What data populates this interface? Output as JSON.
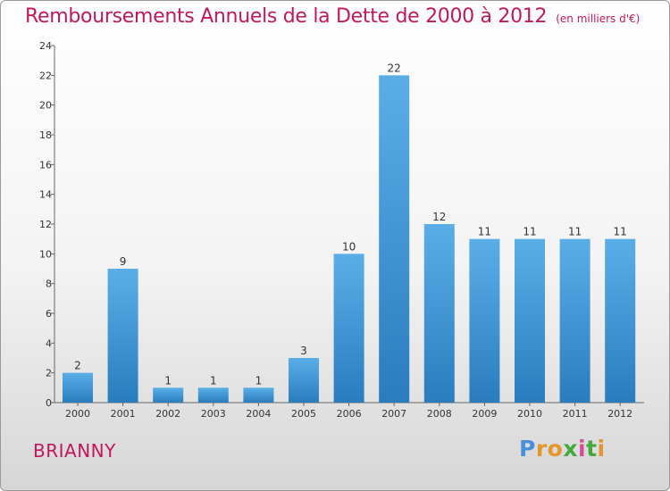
{
  "page": {
    "title": "Remboursements Annuels de la Dette de 2000 à 2012",
    "unit_note": "(en milliers d'€)",
    "commune": "BRIANNY",
    "logo_letters": [
      "P",
      "r",
      "o",
      "x",
      "i",
      "t",
      "i"
    ]
  },
  "chart_data": {
    "type": "bar",
    "title": "Remboursements Annuels de la Dette de 2000 à 2012",
    "subtitle": "(en milliers d'€)",
    "xlabel": "",
    "ylabel": "",
    "categories": [
      "2000",
      "2001",
      "2002",
      "2003",
      "2004",
      "2005",
      "2006",
      "2007",
      "2008",
      "2009",
      "2010",
      "2011",
      "2012"
    ],
    "values": [
      2,
      9,
      1,
      1,
      1,
      3,
      10,
      22,
      12,
      11,
      11,
      11,
      11
    ],
    "ylim": [
      0,
      24
    ],
    "yticks": [
      0,
      2,
      4,
      6,
      8,
      10,
      12,
      14,
      16,
      18,
      20,
      22,
      24
    ],
    "grid": false,
    "legend": "none",
    "colors": {
      "bar_light": "#5aaee8",
      "bar_dark": "#2a7dbd",
      "title": "#c2185b"
    }
  }
}
